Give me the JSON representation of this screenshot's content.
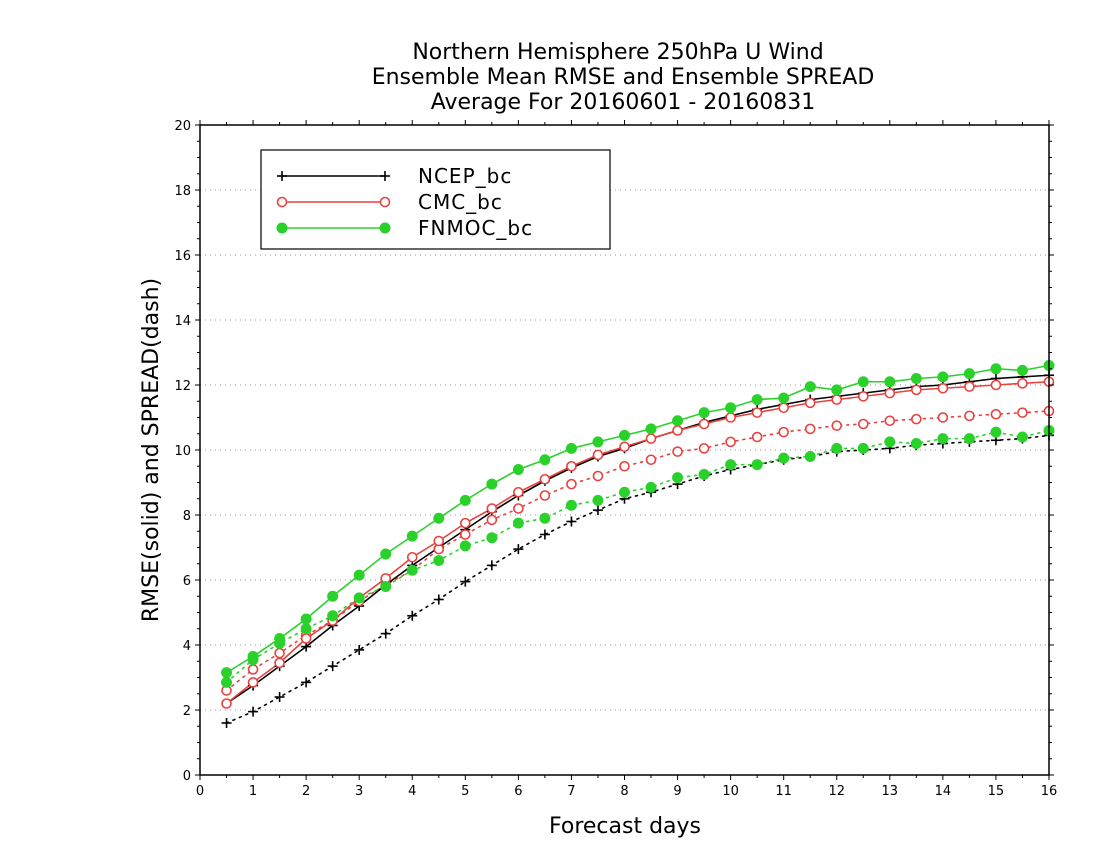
{
  "chart_data": {
    "type": "line",
    "title": [
      "Northern Hemisphere 250hPa U Wind",
      "Ensemble Mean RMSE and Ensemble SPREAD",
      "Average For 20160601 - 20160831"
    ],
    "xlabel": "Forecast days",
    "ylabel": "RMSE(solid) and SPREAD(dash)",
    "xlim": [
      0,
      16
    ],
    "ylim": [
      0,
      20
    ],
    "xticks": [
      "0",
      "1",
      "2",
      "3",
      "4",
      "5",
      "6",
      "7",
      "8",
      "9",
      "10",
      "11",
      "12",
      "13",
      "14",
      "15",
      "16"
    ],
    "yticks": [
      "0",
      "2",
      "4",
      "6",
      "8",
      "10",
      "12",
      "14",
      "16",
      "18",
      "20"
    ],
    "grid": "horizontal dotted",
    "legend_position": "top-left",
    "x": [
      0.5,
      1,
      1.5,
      2,
      2.5,
      3,
      3.5,
      4,
      4.5,
      5,
      5.5,
      6,
      6.5,
      7,
      7.5,
      8,
      8.5,
      9,
      9.5,
      10,
      10.5,
      11,
      11.5,
      12,
      12.5,
      13,
      13.5,
      14,
      14.5,
      15,
      15.5,
      16
    ],
    "series": [
      {
        "name": "NCEP_bc",
        "color": "#000000",
        "marker": "plus",
        "rmse": [
          2.2,
          2.75,
          3.35,
          3.95,
          4.6,
          5.2,
          5.85,
          6.45,
          7.0,
          7.55,
          8.1,
          8.6,
          9.05,
          9.45,
          9.8,
          10.05,
          10.35,
          10.6,
          10.85,
          11.05,
          11.25,
          11.4,
          11.55,
          11.65,
          11.75,
          11.85,
          11.95,
          12.0,
          12.1,
          12.2,
          12.25,
          12.3
        ],
        "spread": [
          1.6,
          1.95,
          2.4,
          2.85,
          3.35,
          3.85,
          4.35,
          4.9,
          5.4,
          5.95,
          6.45,
          6.95,
          7.4,
          7.8,
          8.15,
          8.5,
          8.7,
          8.95,
          9.2,
          9.4,
          9.55,
          9.7,
          9.8,
          9.95,
          10.0,
          10.05,
          10.15,
          10.2,
          10.25,
          10.3,
          10.35,
          10.45
        ]
      },
      {
        "name": "CMC_bc",
        "color": "#e8413e",
        "marker": "open-circle",
        "rmse": [
          2.2,
          2.85,
          3.45,
          4.2,
          4.75,
          5.45,
          6.05,
          6.7,
          7.2,
          7.75,
          8.2,
          8.7,
          9.1,
          9.5,
          9.85,
          10.1,
          10.35,
          10.6,
          10.8,
          11.0,
          11.15,
          11.3,
          11.45,
          11.55,
          11.65,
          11.75,
          11.85,
          11.9,
          11.95,
          12.0,
          12.05,
          12.1
        ],
        "spread": [
          2.6,
          3.25,
          3.75,
          4.3,
          4.75,
          5.35,
          5.85,
          6.3,
          6.95,
          7.4,
          7.85,
          8.2,
          8.6,
          8.95,
          9.2,
          9.5,
          9.7,
          9.95,
          10.05,
          10.25,
          10.4,
          10.55,
          10.65,
          10.75,
          10.8,
          10.9,
          10.95,
          11.0,
          11.05,
          11.1,
          11.15,
          11.2
        ]
      },
      {
        "name": "FNMOC_bc",
        "color": "#2bd12b",
        "marker": "filled-circle",
        "rmse": [
          3.15,
          3.65,
          4.2,
          4.8,
          5.5,
          6.15,
          6.8,
          7.35,
          7.9,
          8.45,
          8.95,
          9.4,
          9.7,
          10.05,
          10.25,
          10.45,
          10.65,
          10.9,
          11.15,
          11.3,
          11.55,
          11.6,
          11.95,
          11.85,
          12.1,
          12.1,
          12.2,
          12.25,
          12.35,
          12.5,
          12.45,
          12.6
        ],
        "spread": [
          2.85,
          3.55,
          4.05,
          4.5,
          4.9,
          5.45,
          5.8,
          6.3,
          6.6,
          7.05,
          7.3,
          7.75,
          7.9,
          8.3,
          8.45,
          8.7,
          8.85,
          9.15,
          9.25,
          9.55,
          9.55,
          9.75,
          9.8,
          10.05,
          10.05,
          10.25,
          10.2,
          10.35,
          10.35,
          10.55,
          10.4,
          10.6
        ]
      }
    ]
  }
}
